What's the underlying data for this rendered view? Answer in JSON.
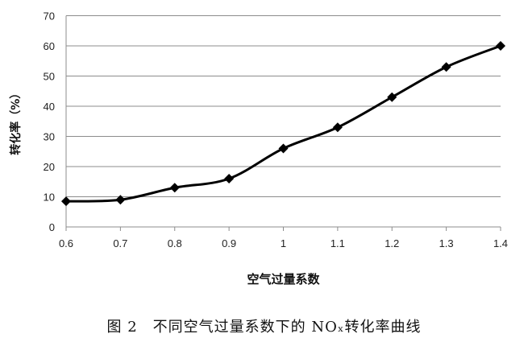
{
  "chart_data": {
    "type": "line",
    "title": "",
    "xlabel": "空气过量系数",
    "ylabel": "转化率（%）",
    "x": [
      0.6,
      0.7,
      0.8,
      0.9,
      1.0,
      1.1,
      1.2,
      1.3,
      1.4
    ],
    "x_tick_labels": [
      "0.6",
      "0.7",
      "0.8",
      "0.9",
      "1",
      "1.1",
      "1.2",
      "1.3",
      "1.4"
    ],
    "y_ticks": [
      0,
      10,
      20,
      30,
      40,
      50,
      60,
      70
    ],
    "series": [
      {
        "values": [
          8.5,
          9,
          13,
          16,
          26,
          33,
          43,
          53,
          60
        ],
        "color": "#000000",
        "marker": "diamond",
        "smooth": true
      }
    ],
    "xlim": [
      0.6,
      1.4
    ],
    "ylim": [
      0,
      70
    ],
    "grid": "horizontal",
    "legend": "none"
  },
  "caption": "图 2　不同空气过量系数下的 NOₓ转化率曲线"
}
